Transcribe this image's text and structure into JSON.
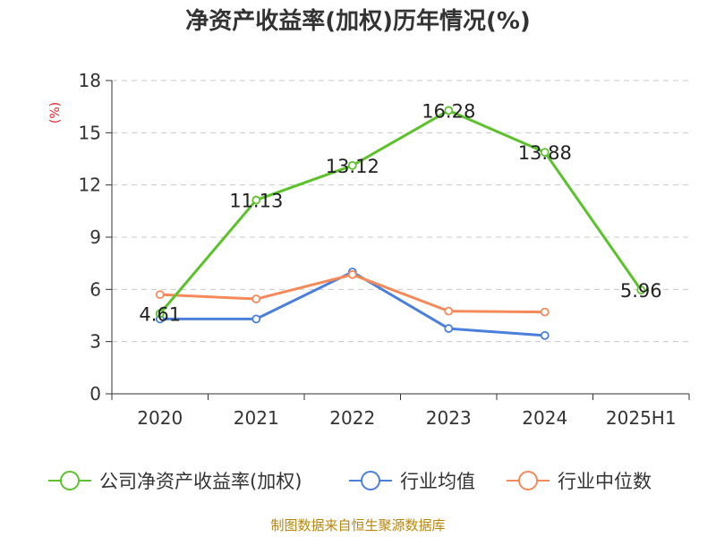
{
  "chart_data": {
    "type": "line",
    "title": "净资产收益率(加权)历年情况(%)",
    "ylabel": "(%)",
    "categories": [
      "2020",
      "2021",
      "2022",
      "2023",
      "2024",
      "2025H1"
    ],
    "ylim": [
      0,
      18
    ],
    "yticks": [
      0,
      3,
      6,
      9,
      12,
      15,
      18
    ],
    "grid": true,
    "legend_position": "bottom",
    "series": [
      {
        "name": "公司净资产收益率(加权)",
        "color": "#5cc22c",
        "values": [
          4.61,
          11.13,
          13.12,
          16.28,
          13.88,
          5.96
        ],
        "labels": [
          "4.61",
          "11.13",
          "13.12",
          "16.28",
          "13.88",
          "5.96"
        ]
      },
      {
        "name": "行业均值",
        "color": "#4a7fdc",
        "values": [
          4.3,
          4.3,
          7.0,
          3.75,
          3.35,
          null
        ]
      },
      {
        "name": "行业中位数",
        "color": "#f5895a",
        "values": [
          5.7,
          5.45,
          6.85,
          4.75,
          4.7,
          null
        ]
      }
    ]
  },
  "source": "制图数据来自恒生聚源数据库"
}
